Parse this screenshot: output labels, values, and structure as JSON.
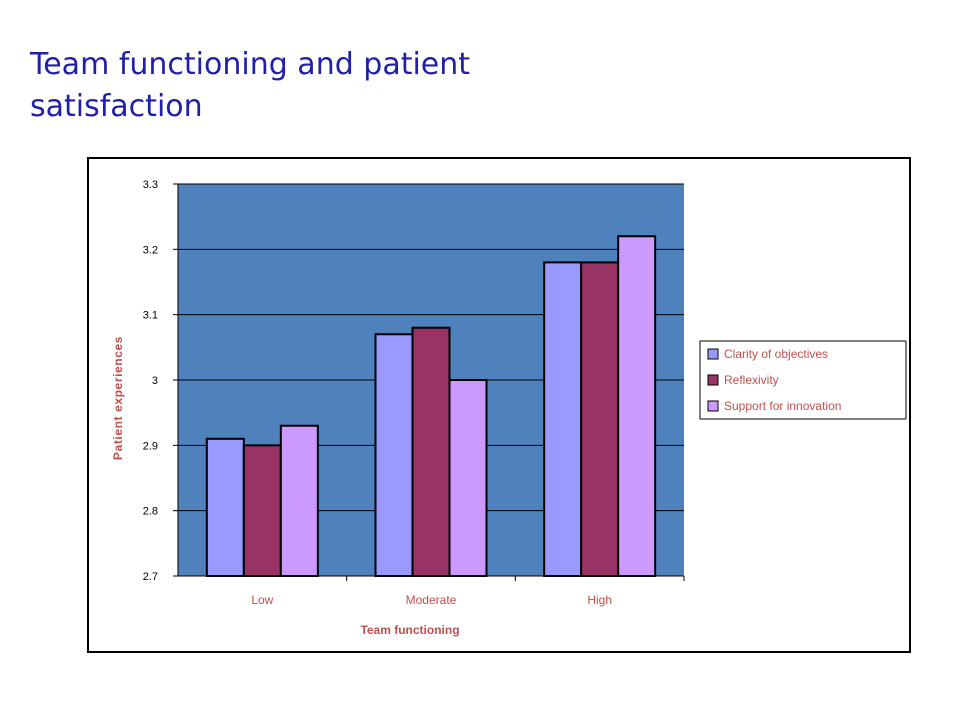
{
  "slide": {
    "title": "Team functioning and patient satisfaction"
  },
  "colors": {
    "title": "#1f1fa8",
    "plot_background": "#4f81bd",
    "axis_label": "#c0504d",
    "series": [
      "#9999ff",
      "#993366",
      "#cc99ff"
    ]
  },
  "chart_data": {
    "type": "bar",
    "categories": [
      "Low",
      "Moderate",
      "High"
    ],
    "series": [
      {
        "name": "Clarity of objectives",
        "values": [
          2.91,
          3.07,
          3.18
        ]
      },
      {
        "name": "Reflexivity",
        "values": [
          2.9,
          3.08,
          3.18
        ]
      },
      {
        "name": "Support for innovation",
        "values": [
          2.93,
          3.0,
          3.22
        ]
      }
    ],
    "xlabel": "Team functioning",
    "ylabel": "Patient experiences",
    "ylim": [
      2.7,
      3.3
    ],
    "yticks": [
      "2.7",
      "2.8",
      "2.9",
      "3",
      "3.1",
      "3.2",
      "3.3"
    ],
    "grid": true,
    "legend_position": "right"
  }
}
